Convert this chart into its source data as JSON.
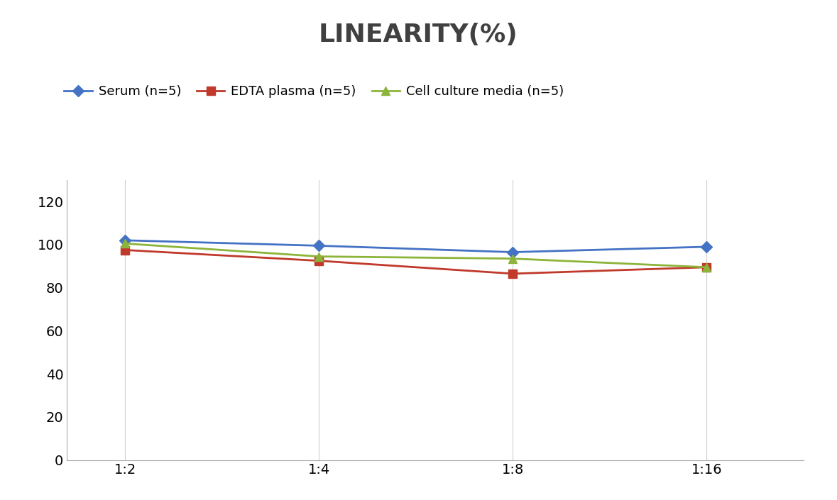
{
  "title": "LINEARITY(%)",
  "x_labels": [
    "1:2",
    "1:4",
    "1:8",
    "1:16"
  ],
  "x_positions": [
    0,
    1,
    2,
    3
  ],
  "series": [
    {
      "name": "Serum (n=5)",
      "values": [
        102,
        99.5,
        96.5,
        99
      ],
      "color": "#4472C4",
      "marker": "D",
      "linewidth": 2.0,
      "markersize": 8
    },
    {
      "name": "EDTA plasma (n=5)",
      "values": [
        97.5,
        92.5,
        86.5,
        89.5
      ],
      "color": "#C0392B",
      "marker": "s",
      "linewidth": 2.0,
      "markersize": 8
    },
    {
      "name": "Cell culture media (n=5)",
      "values": [
        100.5,
        94.5,
        93.5,
        89.5
      ],
      "color": "#8DB43A",
      "marker": "^",
      "linewidth": 2.0,
      "markersize": 8
    }
  ],
  "ylim": [
    0,
    130
  ],
  "yticks": [
    0,
    20,
    40,
    60,
    80,
    100,
    120
  ],
  "title_fontsize": 26,
  "legend_fontsize": 13,
  "tick_fontsize": 14,
  "background_color": "#ffffff",
  "grid_color": "#d0d0d0",
  "title_color": "#404040"
}
